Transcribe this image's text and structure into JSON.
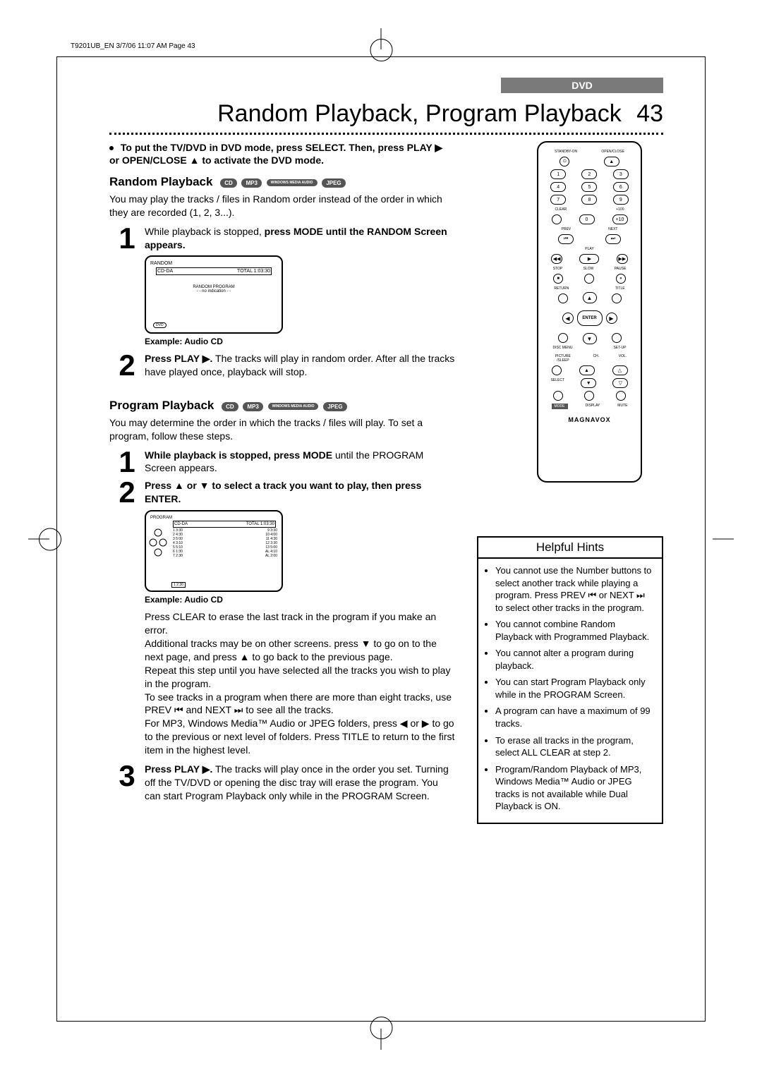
{
  "header_text": "T9201UB_EN 3/7/06 11:07 AM Page 43",
  "dvd_badge": "DVD",
  "page_title": "Random Playback, Program Playback",
  "page_number": "43",
  "intro": "To put the TV/DVD in DVD mode, press SELECT. Then, press PLAY ▶ or OPEN/CLOSE ▲ to activate the DVD mode.",
  "random_h": "Random Playback",
  "format_badges": [
    "CD",
    "MP3",
    "WINDOWS MEDIA AUDIO",
    "JPEG"
  ],
  "random_intro": "You may play the tracks / files in Random order instead of the order in which they are recorded (1, 2, 3...).",
  "random_step_1a": "While playback is stopped, ",
  "random_step_1b": "press MODE until the RANDOM Screen appears.",
  "example_label": "Example: Audio CD",
  "random_step_2a": "Press PLAY ▶.",
  "random_step_2b": " The tracks will play in random order. After all the tracks have played once, playback will stop.",
  "program_h": "Program Playback",
  "program_intro": "You may determine the order in which the tracks / files will play. To set a program, follow these steps.",
  "prog_step_1a": "While playback is stopped, press MODE",
  "prog_step_1b": " until the PROGRAM Screen appears.",
  "prog_step_2a": "Press ▲ or ▼ to select a track you want to play, then press ENTER.",
  "prog_step_2_body": "Press CLEAR to erase the last track in the program if you make an error.\nAdditional tracks may be on other screens. press ▼ to go on to the next page, and press ▲ to go back to the previous page.\nRepeat this step until you have selected all the tracks you wish to play in the program.\nTo see tracks in a program when there are more than eight tracks, use PREV ⏮ and NEXT ⏭ to see all the tracks.\nFor MP3, Windows Media™ Audio or JPEG folders, press ◀ or ▶ to go to the previous or next level of folders. Press TITLE to return to the first item in the highest level.",
  "prog_step_3a": "Press PLAY ▶.",
  "prog_step_3b": " The tracks will play once in the order you set. Turning off the TV/DVD or opening the disc tray will erase the program. You can start Program Playback only while in the PROGRAM Screen.",
  "screen_random_title": "RANDOM",
  "screen_random_sub": "CD-DA",
  "screen_random_total": "TOTAL 1:03:30",
  "screen_random_text": "RANDOM PROGRAM\n- - no  indication - -",
  "screen_prog_title": "PROGRAM",
  "screen_prog_sub": "CD-DA",
  "screen_prog_total": "TOTAL 1:03:30",
  "screen_prog_tracks": [
    [
      "1 3:30",
      "9 3:30"
    ],
    [
      "2 4:30",
      "10 4:00"
    ],
    [
      "3 5:00",
      "11 4:30"
    ],
    [
      "4 3:10",
      "12 3:30"
    ],
    [
      "5 5:10",
      "13 5:00"
    ],
    [
      "6 1:30",
      "AL 4:10"
    ],
    [
      "7 2:30",
      "AL 2:00"
    ]
  ],
  "screen_prog_sel": "1 2:30",
  "remote": {
    "brand": "MAGNAVOX",
    "standby": "STANDBY-ON",
    "open": "OPEN/CLOSE",
    "clear": "CLEAR",
    "plus100": "+100",
    "plus10": "+10",
    "prev": "PREV",
    "next": "NEXT",
    "play": "PLAY",
    "stop": "STOP",
    "slow": "SLOW",
    "pause": "PAUSE",
    "return": "RETURN",
    "title": "TITLE",
    "enter": "ENTER",
    "disc": "DISC MENU",
    "setup": "SET-UP",
    "picture": "PICTURE /SLEEP",
    "ch": "CH.",
    "vol": "VOL.",
    "select": "SELECT",
    "mode": "MODE",
    "display": "DISPLAY",
    "mute": "MUTE"
  },
  "hints_title": "Helpful Hints",
  "hints": [
    "You cannot use the Number buttons to select another track while playing a program. Press PREV ⏮ or NEXT ⏭ to select other tracks in the program.",
    "You cannot combine Random Playback with Programmed Playback.",
    "You cannot alter a program during playback.",
    "You can start Program Playback only while in the PROGRAM Screen.",
    "A program can have a maximum of 99 tracks.",
    "To erase all tracks in the program, select ALL CLEAR at step 2.",
    "Program/Random Playback of MP3, Windows Media™ Audio or JPEG tracks is not available while Dual Playback is ON."
  ]
}
